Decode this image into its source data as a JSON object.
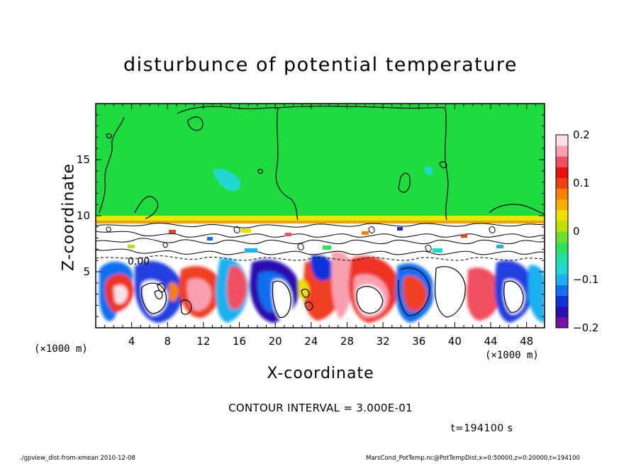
{
  "chart_data": {
    "type": "heatmap",
    "title": "disturbunce of potential temperature",
    "xlabel": "X-coordinate",
    "ylabel": "Z-coordinate",
    "x_unit": "(×1000 m)",
    "xlim": [
      0,
      50
    ],
    "ylim": [
      0,
      20
    ],
    "x_ticks": [
      "4",
      "8",
      "12",
      "16",
      "20",
      "24",
      "28",
      "32",
      "36",
      "40",
      "44",
      "48"
    ],
    "y_ticks": [
      "5",
      "10",
      "15"
    ],
    "colorbar": {
      "min": -0.2,
      "max": 0.2,
      "tick_labels": [
        "0.2",
        "0.1",
        "0",
        "−0.1",
        "−0.2"
      ],
      "colors": [
        "#7a10a8",
        "#2a0fb0",
        "#1030d8",
        "#1470f0",
        "#1eb0f0",
        "#20d8d0",
        "#20e0a0",
        "#30e060",
        "#70e030",
        "#c0e000",
        "#f0e000",
        "#f8b000",
        "#f88000",
        "#f04010",
        "#e81010",
        "#f05060",
        "#f8a0b0",
        "#fde0e8"
      ]
    },
    "contour_label": "0.00",
    "contour_interval": "CONTOUR INTERVAL = 3.000E-01",
    "time": "t=194100 s"
  },
  "footer": {
    "left": "./gpview_dist-from-xmean  2010-12-08",
    "right": "MarsCond_PotTemp.nc@PotTempDist,x=0:50000,z=0:20000,t=194100"
  }
}
